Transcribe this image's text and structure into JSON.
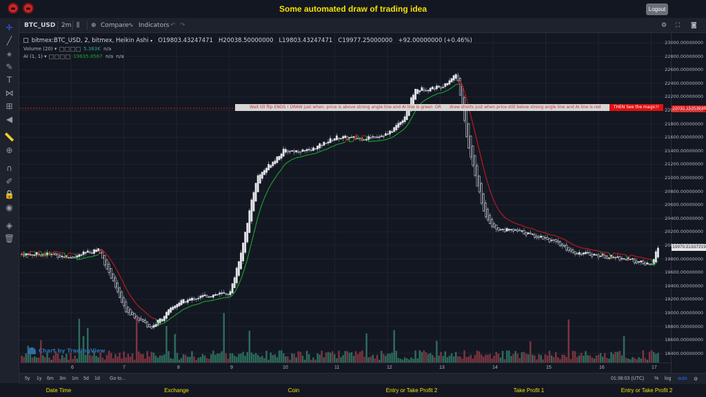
{
  "header": {
    "title": "Some automated draw of trading idea",
    "logout_label": "Logout"
  },
  "toolbar": {
    "symbol": "BTC_USD",
    "interval": "2m",
    "compare_label": "Compare",
    "indicators_label": "Indicators"
  },
  "legend": {
    "title": "bitmex:BTC_USD, 2, bitmex, Heikin Ashi",
    "ohlc": [
      "O19803.43247471",
      "H20038.50000000",
      "L19803.43247471",
      "C19977.25000000",
      "+92.00000000 (+0.46%)"
    ],
    "volume_label": "Volume (20)",
    "volume_value": "5.383K",
    "volume_na": "n/a",
    "ai_label": "AI (1, 1)",
    "ai_value": "19835.8567",
    "ai_na1": "n/a",
    "ai_na2": "n/a"
  },
  "banner": {
    "part1": "Wait till flip ENDS  !   DRAW just when:  price is above strong angle line and AI line is green",
    "or": "OR",
    "part2": "draw shorts just when price still below strong angle line and AI line is red",
    "end": "THEN See the magic!!",
    "price_tag": "22032.15353938"
  },
  "current_price_tag": "19979.81937219",
  "watermark": "Chart by TradingView",
  "y_axis_labels": [
    "23000.00000000",
    "22800.00000000",
    "22600.00000000",
    "22400.00000000",
    "22200.00000000",
    "22000.00000000",
    "21800.00000000",
    "21600.00000000",
    "21400.00000000",
    "21200.00000000",
    "21000.00000000",
    "20800.00000000",
    "20600.00000000",
    "20400.00000000",
    "20200.00000000",
    "20000.00000000",
    "19800.00000000",
    "19600.00000000",
    "19400.00000000",
    "19200.00000000",
    "19000.00000000",
    "18800.00000000",
    "18600.00000000",
    "18400.00000000"
  ],
  "x_axis_labels": [
    "6",
    "7",
    "8",
    "9",
    "10",
    "11",
    "12",
    "13",
    "14",
    "15",
    "16",
    "17"
  ],
  "range_bar": {
    "ranges": [
      "5y",
      "1y",
      "6m",
      "3m",
      "1m",
      "5d",
      "1d"
    ],
    "goto": "Go to...",
    "time": "01:38:03 (UTC)",
    "pct": "%",
    "log": "log",
    "auto": "auto"
  },
  "footer": [
    "Date Time",
    "Exchange",
    "Coin",
    "Entry or Take Profit 2",
    "Take Profit 1",
    "Entry or Take Profit 2"
  ],
  "colors": {
    "up": "#26a69a",
    "down": "#ef5350",
    "candle": "#d1d4dc",
    "ai_green": "#1b9e2a",
    "ai_red": "#b71c1c",
    "title": "#f5e000"
  },
  "chart_data": {
    "type": "candlestick",
    "price_range": [
      18300,
      23100
    ],
    "x": [
      "5.5",
      "6",
      "6.5",
      "7",
      "7.5",
      "8",
      "8.5",
      "9",
      "9.2",
      "9.5",
      "10",
      "10.5",
      "11",
      "11.5",
      "12",
      "12.3",
      "12.5",
      "13",
      "13.3",
      "13.5",
      "13.8",
      "14",
      "14.5",
      "15",
      "15.5",
      "16",
      "16.5",
      "17",
      "17.1"
    ],
    "price": [
      19870,
      19820,
      19950,
      19050,
      18780,
      19150,
      19250,
      19300,
      19900,
      21000,
      21400,
      21400,
      21600,
      21580,
      21650,
      21900,
      22300,
      22350,
      22550,
      21500,
      20500,
      20250,
      20200,
      20100,
      19900,
      19850,
      19800,
      19700,
      19980
    ]
  }
}
